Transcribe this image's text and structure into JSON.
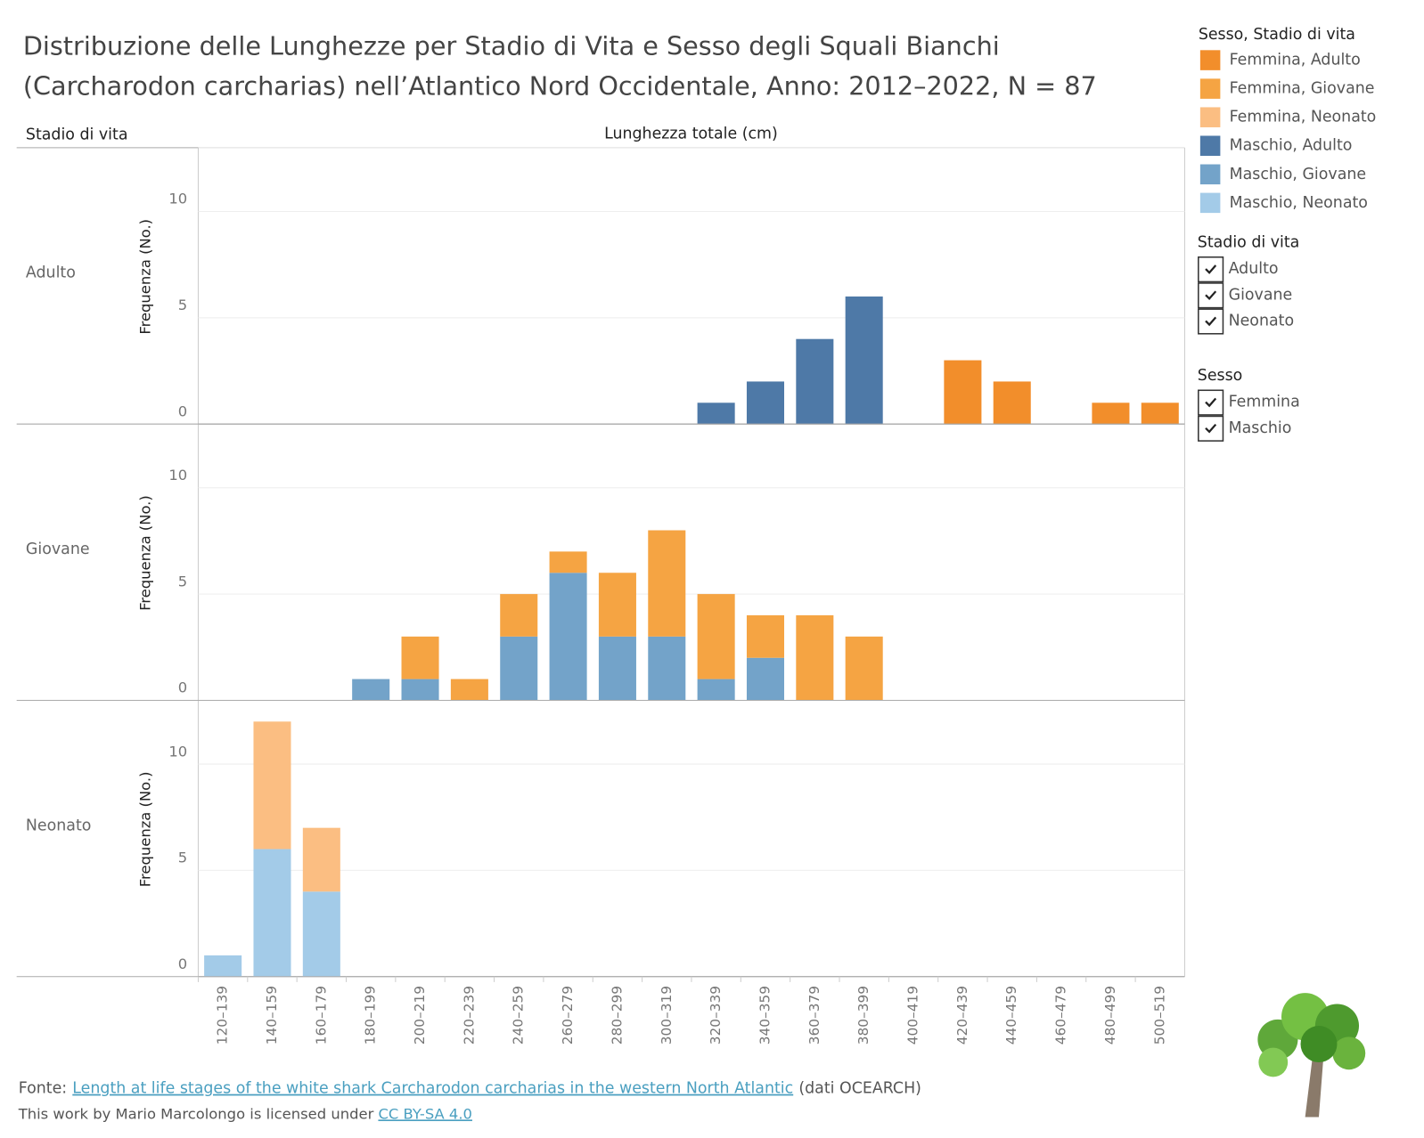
{
  "chart_data": {
    "type": "bar",
    "stacked": true,
    "title": [
      "Distribuzione delle Lunghezze per Stadio di Vita e Sesso degli Squali Bianchi",
      "(Carcharodon carcharias) nell’Atlantico Nord Occidentale, Anno: 2012–2022, N = 87"
    ],
    "row_header": "Stadio di vita",
    "x_label": "Lunghezza totale (cm)",
    "y_label": "Frequenza (No.)",
    "ylim": [
      0,
      13
    ],
    "yticks": [
      0,
      5,
      10
    ],
    "grid": true,
    "categories": [
      "120–139",
      "140–159",
      "160–179",
      "180–199",
      "200–219",
      "220–239",
      "240–259",
      "260–279",
      "280–299",
      "300–319",
      "320–339",
      "340–359",
      "360–379",
      "380–399",
      "400–419",
      "420–439",
      "440–459",
      "460–479",
      "480–499",
      "500–519"
    ],
    "legend_title": "Sesso, Stadio di vita",
    "legend_position": "right",
    "panels": [
      {
        "label": "Adulto",
        "series": [
          {
            "name": "Maschio, Adulto",
            "color": "#4e79a7",
            "values": [
              0,
              0,
              0,
              0,
              0,
              0,
              0,
              0,
              0,
              0,
              1,
              2,
              4,
              6,
              0,
              0,
              0,
              0,
              0,
              0
            ]
          },
          {
            "name": "Femmina, Adulto",
            "color": "#f28e2b",
            "values": [
              0,
              0,
              0,
              0,
              0,
              0,
              0,
              0,
              0,
              0,
              0,
              0,
              0,
              0,
              0,
              3,
              2,
              0,
              1,
              1
            ]
          }
        ]
      },
      {
        "label": "Giovane",
        "series": [
          {
            "name": "Maschio, Giovane",
            "color": "#73a3c9",
            "values": [
              0,
              0,
              0,
              1,
              1,
              0,
              3,
              6,
              3,
              3,
              1,
              2,
              0,
              0,
              0,
              0,
              0,
              0,
              0,
              0
            ]
          },
          {
            "name": "Femmina, Giovane",
            "color": "#f5a443",
            "values": [
              0,
              0,
              0,
              0,
              2,
              1,
              2,
              1,
              3,
              5,
              4,
              2,
              4,
              3,
              0,
              0,
              0,
              0,
              0,
              0
            ]
          }
        ]
      },
      {
        "label": "Neonato",
        "series": [
          {
            "name": "Maschio, Neonato",
            "color": "#a3cbe8",
            "values": [
              1,
              6,
              4,
              0,
              0,
              0,
              0,
              0,
              0,
              0,
              0,
              0,
              0,
              0,
              0,
              0,
              0,
              0,
              0,
              0
            ]
          },
          {
            "name": "Femmina, Neonato",
            "color": "#fbbe82",
            "values": [
              0,
              6,
              3,
              0,
              0,
              0,
              0,
              0,
              0,
              0,
              0,
              0,
              0,
              0,
              0,
              0,
              0,
              0,
              0,
              0
            ]
          }
        ]
      }
    ]
  },
  "filters": [
    {
      "title": "Stadio di vita",
      "items": [
        "Adulto",
        "Giovane",
        "Neonato"
      ]
    },
    {
      "title": "Sesso",
      "items": [
        "Femmina",
        "Maschio"
      ]
    }
  ],
  "footer": {
    "source_prefix": "Fonte:",
    "source_link": "Length at life stages of the white shark Carcharodon carcharias in the western North Atlantic",
    "source_suffix": "(dati OCEARCH)",
    "license_prefix": "This work by Mario Marcolongo is licensed under",
    "license_link": "CC BY-SA 4.0"
  }
}
